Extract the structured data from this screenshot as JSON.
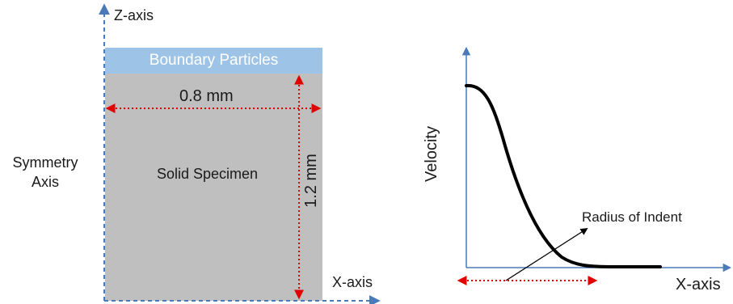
{
  "left_diagram": {
    "z_axis_label": "Z-axis",
    "x_axis_label": "X-axis",
    "symmetry_label": "Symmetry Axis",
    "boundary_label": "Boundary Particles",
    "width_dimension": "0.8 mm",
    "height_dimension": "1.2 mm",
    "specimen_label": "Solid Specimen"
  },
  "right_plot": {
    "y_axis_label": "Velocity",
    "x_axis_label": "X-axis",
    "annotation": "Radius of Indent"
  },
  "colors": {
    "boundary_fill": "#9dc3e6",
    "specimen_fill": "#bfbfbf",
    "axis_blue": "#4a7ab8",
    "dimension_red": "#e00000",
    "curve": "#000000"
  }
}
